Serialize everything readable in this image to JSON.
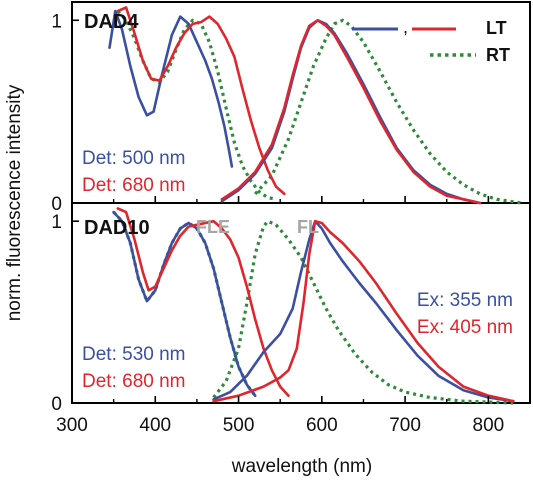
{
  "chart_data": [
    {
      "type": "line",
      "panel_label": "DAD4",
      "xlim": [
        300,
        850
      ],
      "ylim": [
        0,
        1.1
      ],
      "yticks": [
        0,
        1
      ],
      "legend": {
        "placement": "top-right",
        "entries": [
          {
            "text": ",",
            "color": "#3b4fa3",
            "style": "solid"
          },
          {
            "text": "LT",
            "color": "#e0262d",
            "style": "solid"
          },
          {
            "text": "RT",
            "color": "#2e8b3a",
            "style": "dotted"
          }
        ]
      },
      "annotations": [
        {
          "text": "Det: 500 nm",
          "color": "#3b4fa3"
        },
        {
          "text": "Det: 680 nm",
          "color": "#e0262d"
        }
      ],
      "series": [
        {
          "color": "#3b4fa3",
          "dash": "solid",
          "points": [
            [
              345,
              0.85
            ],
            [
              352,
              1.05
            ],
            [
              360,
              0.95
            ],
            [
              370,
              0.75
            ],
            [
              380,
              0.58
            ],
            [
              390,
              0.48
            ],
            [
              398,
              0.5
            ],
            [
              408,
              0.7
            ],
            [
              420,
              0.92
            ],
            [
              430,
              1.02
            ],
            [
              440,
              0.98
            ],
            [
              450,
              0.88
            ],
            [
              460,
              0.78
            ],
            [
              468,
              0.68
            ],
            [
              476,
              0.55
            ],
            [
              483,
              0.42
            ],
            [
              488,
              0.3
            ],
            [
              492,
              0.2
            ]
          ]
        },
        {
          "color": "#e0262d",
          "dash": "solid",
          "points": [
            [
              355,
              1.05
            ],
            [
              365,
              1.07
            ],
            [
              375,
              0.93
            ],
            [
              385,
              0.78
            ],
            [
              395,
              0.68
            ],
            [
              405,
              0.67
            ],
            [
              415,
              0.75
            ],
            [
              425,
              0.85
            ],
            [
              435,
              0.93
            ],
            [
              445,
              0.98
            ],
            [
              455,
              0.99
            ],
            [
              465,
              1.02
            ],
            [
              475,
              0.98
            ],
            [
              485,
              0.9
            ],
            [
              495,
              0.8
            ],
            [
              505,
              0.62
            ],
            [
              515,
              0.45
            ],
            [
              525,
              0.3
            ],
            [
              535,
              0.18
            ],
            [
              545,
              0.09
            ],
            [
              555,
              0.05
            ]
          ]
        },
        {
          "color": "#2e8b3a",
          "dash": "dotted",
          "points": [
            [
              355,
              1.05
            ],
            [
              365,
              1.0
            ],
            [
              375,
              0.9
            ],
            [
              385,
              0.78
            ],
            [
              395,
              0.68
            ],
            [
              405,
              0.66
            ],
            [
              415,
              0.72
            ],
            [
              425,
              0.84
            ],
            [
              435,
              0.95
            ],
            [
              445,
              1.0
            ],
            [
              455,
              0.98
            ],
            [
              465,
              0.88
            ],
            [
              475,
              0.72
            ],
            [
              485,
              0.52
            ],
            [
              495,
              0.33
            ],
            [
              505,
              0.2
            ],
            [
              515,
              0.12
            ],
            [
              525,
              0.06
            ],
            [
              535,
              0.03
            ],
            [
              545,
              0.02
            ]
          ]
        },
        {
          "color": "#3b4fa3",
          "dash": "solid",
          "points": [
            [
              480,
              0.01
            ],
            [
              500,
              0.07
            ],
            [
              520,
              0.16
            ],
            [
              540,
              0.3
            ],
            [
              555,
              0.5
            ],
            [
              565,
              0.68
            ],
            [
              575,
              0.85
            ],
            [
              585,
              0.96
            ],
            [
              595,
              1.0
            ],
            [
              605,
              0.98
            ],
            [
              615,
              0.93
            ],
            [
              630,
              0.82
            ],
            [
              650,
              0.65
            ],
            [
              670,
              0.47
            ],
            [
              690,
              0.3
            ],
            [
              710,
              0.18
            ],
            [
              730,
              0.1
            ],
            [
              750,
              0.05
            ],
            [
              770,
              0.02
            ],
            [
              790,
              0.0
            ]
          ]
        },
        {
          "color": "#e0262d",
          "dash": "solid",
          "points": [
            [
              480,
              0.02
            ],
            [
              500,
              0.08
            ],
            [
              520,
              0.17
            ],
            [
              540,
              0.32
            ],
            [
              555,
              0.52
            ],
            [
              565,
              0.7
            ],
            [
              575,
              0.86
            ],
            [
              585,
              0.97
            ],
            [
              595,
              1.0
            ],
            [
              605,
              0.97
            ],
            [
              615,
              0.92
            ],
            [
              630,
              0.8
            ],
            [
              650,
              0.63
            ],
            [
              670,
              0.45
            ],
            [
              690,
              0.29
            ],
            [
              710,
              0.17
            ],
            [
              730,
              0.09
            ],
            [
              750,
              0.04
            ],
            [
              770,
              0.02
            ],
            [
              790,
              0.0
            ]
          ]
        },
        {
          "color": "#2e8b3a",
          "dash": "dotted",
          "points": [
            [
              520,
              0.05
            ],
            [
              540,
              0.15
            ],
            [
              560,
              0.35
            ],
            [
              575,
              0.55
            ],
            [
              590,
              0.75
            ],
            [
              605,
              0.9
            ],
            [
              615,
              0.98
            ],
            [
              625,
              1.0
            ],
            [
              635,
              0.97
            ],
            [
              650,
              0.88
            ],
            [
              670,
              0.72
            ],
            [
              690,
              0.55
            ],
            [
              710,
              0.4
            ],
            [
              730,
              0.27
            ],
            [
              750,
              0.17
            ],
            [
              770,
              0.1
            ],
            [
              790,
              0.05
            ],
            [
              810,
              0.02
            ],
            [
              840,
              0.0
            ]
          ]
        }
      ]
    },
    {
      "type": "line",
      "panel_label": "DAD10",
      "xlim": [
        300,
        850
      ],
      "ylim": [
        0,
        1.1
      ],
      "yticks": [
        0,
        1
      ],
      "xticks": [
        300,
        400,
        500,
        600,
        700,
        800
      ],
      "xlabel": "wavelength (nm)",
      "annotations": [
        {
          "text": "FLE",
          "color": "#a6a6a6"
        },
        {
          "text": "FL",
          "color": "#a6a6a6"
        },
        {
          "text": "Det: 530 nm",
          "color": "#3b4fa3"
        },
        {
          "text": "Det: 680 nm",
          "color": "#e0262d"
        },
        {
          "text": "Ex: 355 nm",
          "color": "#3b4fa3"
        },
        {
          "text": "Ex: 405 nm",
          "color": "#e0262d"
        }
      ],
      "series": [
        {
          "color": "#3b4fa3",
          "dash": "solid",
          "points": [
            [
              350,
              1.05
            ],
            [
              360,
              1.0
            ],
            [
              370,
              0.88
            ],
            [
              380,
              0.68
            ],
            [
              390,
              0.56
            ],
            [
              400,
              0.62
            ],
            [
              410,
              0.76
            ],
            [
              420,
              0.88
            ],
            [
              430,
              0.96
            ],
            [
              440,
              0.99
            ],
            [
              450,
              0.96
            ],
            [
              460,
              0.88
            ],
            [
              470,
              0.74
            ],
            [
              480,
              0.55
            ],
            [
              490,
              0.36
            ],
            [
              500,
              0.2
            ],
            [
              510,
              0.1
            ],
            [
              520,
              0.04
            ]
          ]
        },
        {
          "color": "#e0262d",
          "dash": "solid",
          "points": [
            [
              355,
              1.07
            ],
            [
              365,
              1.05
            ],
            [
              375,
              0.9
            ],
            [
              385,
              0.72
            ],
            [
              392,
              0.62
            ],
            [
              400,
              0.64
            ],
            [
              410,
              0.74
            ],
            [
              420,
              0.84
            ],
            [
              430,
              0.92
            ],
            [
              440,
              0.97
            ],
            [
              450,
              0.98
            ],
            [
              460,
              0.99
            ],
            [
              470,
              1.0
            ],
            [
              480,
              0.96
            ],
            [
              490,
              0.9
            ],
            [
              500,
              0.8
            ],
            [
              510,
              0.64
            ],
            [
              520,
              0.46
            ],
            [
              530,
              0.3
            ],
            [
              540,
              0.18
            ],
            [
              550,
              0.09
            ],
            [
              560,
              0.04
            ]
          ]
        },
        {
          "color": "#2e8b3a",
          "dash": "dotted",
          "points": [
            [
              350,
              1.05
            ],
            [
              360,
              1.0
            ],
            [
              370,
              0.88
            ],
            [
              380,
              0.68
            ],
            [
              390,
              0.56
            ],
            [
              400,
              0.62
            ],
            [
              410,
              0.76
            ],
            [
              420,
              0.88
            ],
            [
              430,
              0.96
            ],
            [
              440,
              0.99
            ],
            [
              450,
              0.96
            ],
            [
              460,
              0.88
            ],
            [
              470,
              0.74
            ],
            [
              480,
              0.55
            ],
            [
              490,
              0.36
            ],
            [
              500,
              0.2
            ],
            [
              510,
              0.1
            ],
            [
              520,
              0.04
            ]
          ]
        },
        {
          "color": "#3b4fa3",
          "dash": "solid",
          "points": [
            [
              470,
              0.02
            ],
            [
              490,
              0.06
            ],
            [
              510,
              0.15
            ],
            [
              530,
              0.28
            ],
            [
              550,
              0.38
            ],
            [
              565,
              0.52
            ],
            [
              575,
              0.72
            ],
            [
              585,
              0.9
            ],
            [
              592,
              1.0
            ],
            [
              600,
              0.96
            ],
            [
              610,
              0.88
            ],
            [
              625,
              0.78
            ],
            [
              645,
              0.66
            ],
            [
              665,
              0.55
            ],
            [
              690,
              0.4
            ],
            [
              715,
              0.26
            ],
            [
              740,
              0.15
            ],
            [
              770,
              0.07
            ],
            [
              800,
              0.03
            ],
            [
              830,
              0.01
            ]
          ]
        },
        {
          "color": "#e0262d",
          "dash": "solid",
          "points": [
            [
              470,
              0.01
            ],
            [
              500,
              0.04
            ],
            [
              530,
              0.09
            ],
            [
              550,
              0.14
            ],
            [
              560,
              0.18
            ],
            [
              570,
              0.3
            ],
            [
              578,
              0.55
            ],
            [
              585,
              0.82
            ],
            [
              592,
              1.0
            ],
            [
              600,
              0.99
            ],
            [
              610,
              0.94
            ],
            [
              625,
              0.88
            ],
            [
              645,
              0.78
            ],
            [
              665,
              0.66
            ],
            [
              690,
              0.49
            ],
            [
              715,
              0.33
            ],
            [
              740,
              0.2
            ],
            [
              770,
              0.09
            ],
            [
              800,
              0.04
            ],
            [
              830,
              0.01
            ]
          ]
        },
        {
          "color": "#2e8b3a",
          "dash": "dotted",
          "points": [
            [
              470,
              0.03
            ],
            [
              485,
              0.12
            ],
            [
              500,
              0.3
            ],
            [
              510,
              0.55
            ],
            [
              520,
              0.82
            ],
            [
              530,
              0.97
            ],
            [
              535,
              1.0
            ],
            [
              545,
              0.98
            ],
            [
              560,
              0.9
            ],
            [
              575,
              0.8
            ],
            [
              590,
              0.66
            ],
            [
              605,
              0.52
            ],
            [
              620,
              0.4
            ],
            [
              640,
              0.27
            ],
            [
              660,
              0.17
            ],
            [
              680,
              0.1
            ],
            [
              700,
              0.06
            ],
            [
              730,
              0.03
            ],
            [
              770,
              0.01
            ],
            [
              830,
              0.0
            ]
          ]
        }
      ]
    }
  ],
  "shared": {
    "ylabel": "norm. fluorescence intensity",
    "ytick_labels": [
      "0",
      "1"
    ]
  }
}
